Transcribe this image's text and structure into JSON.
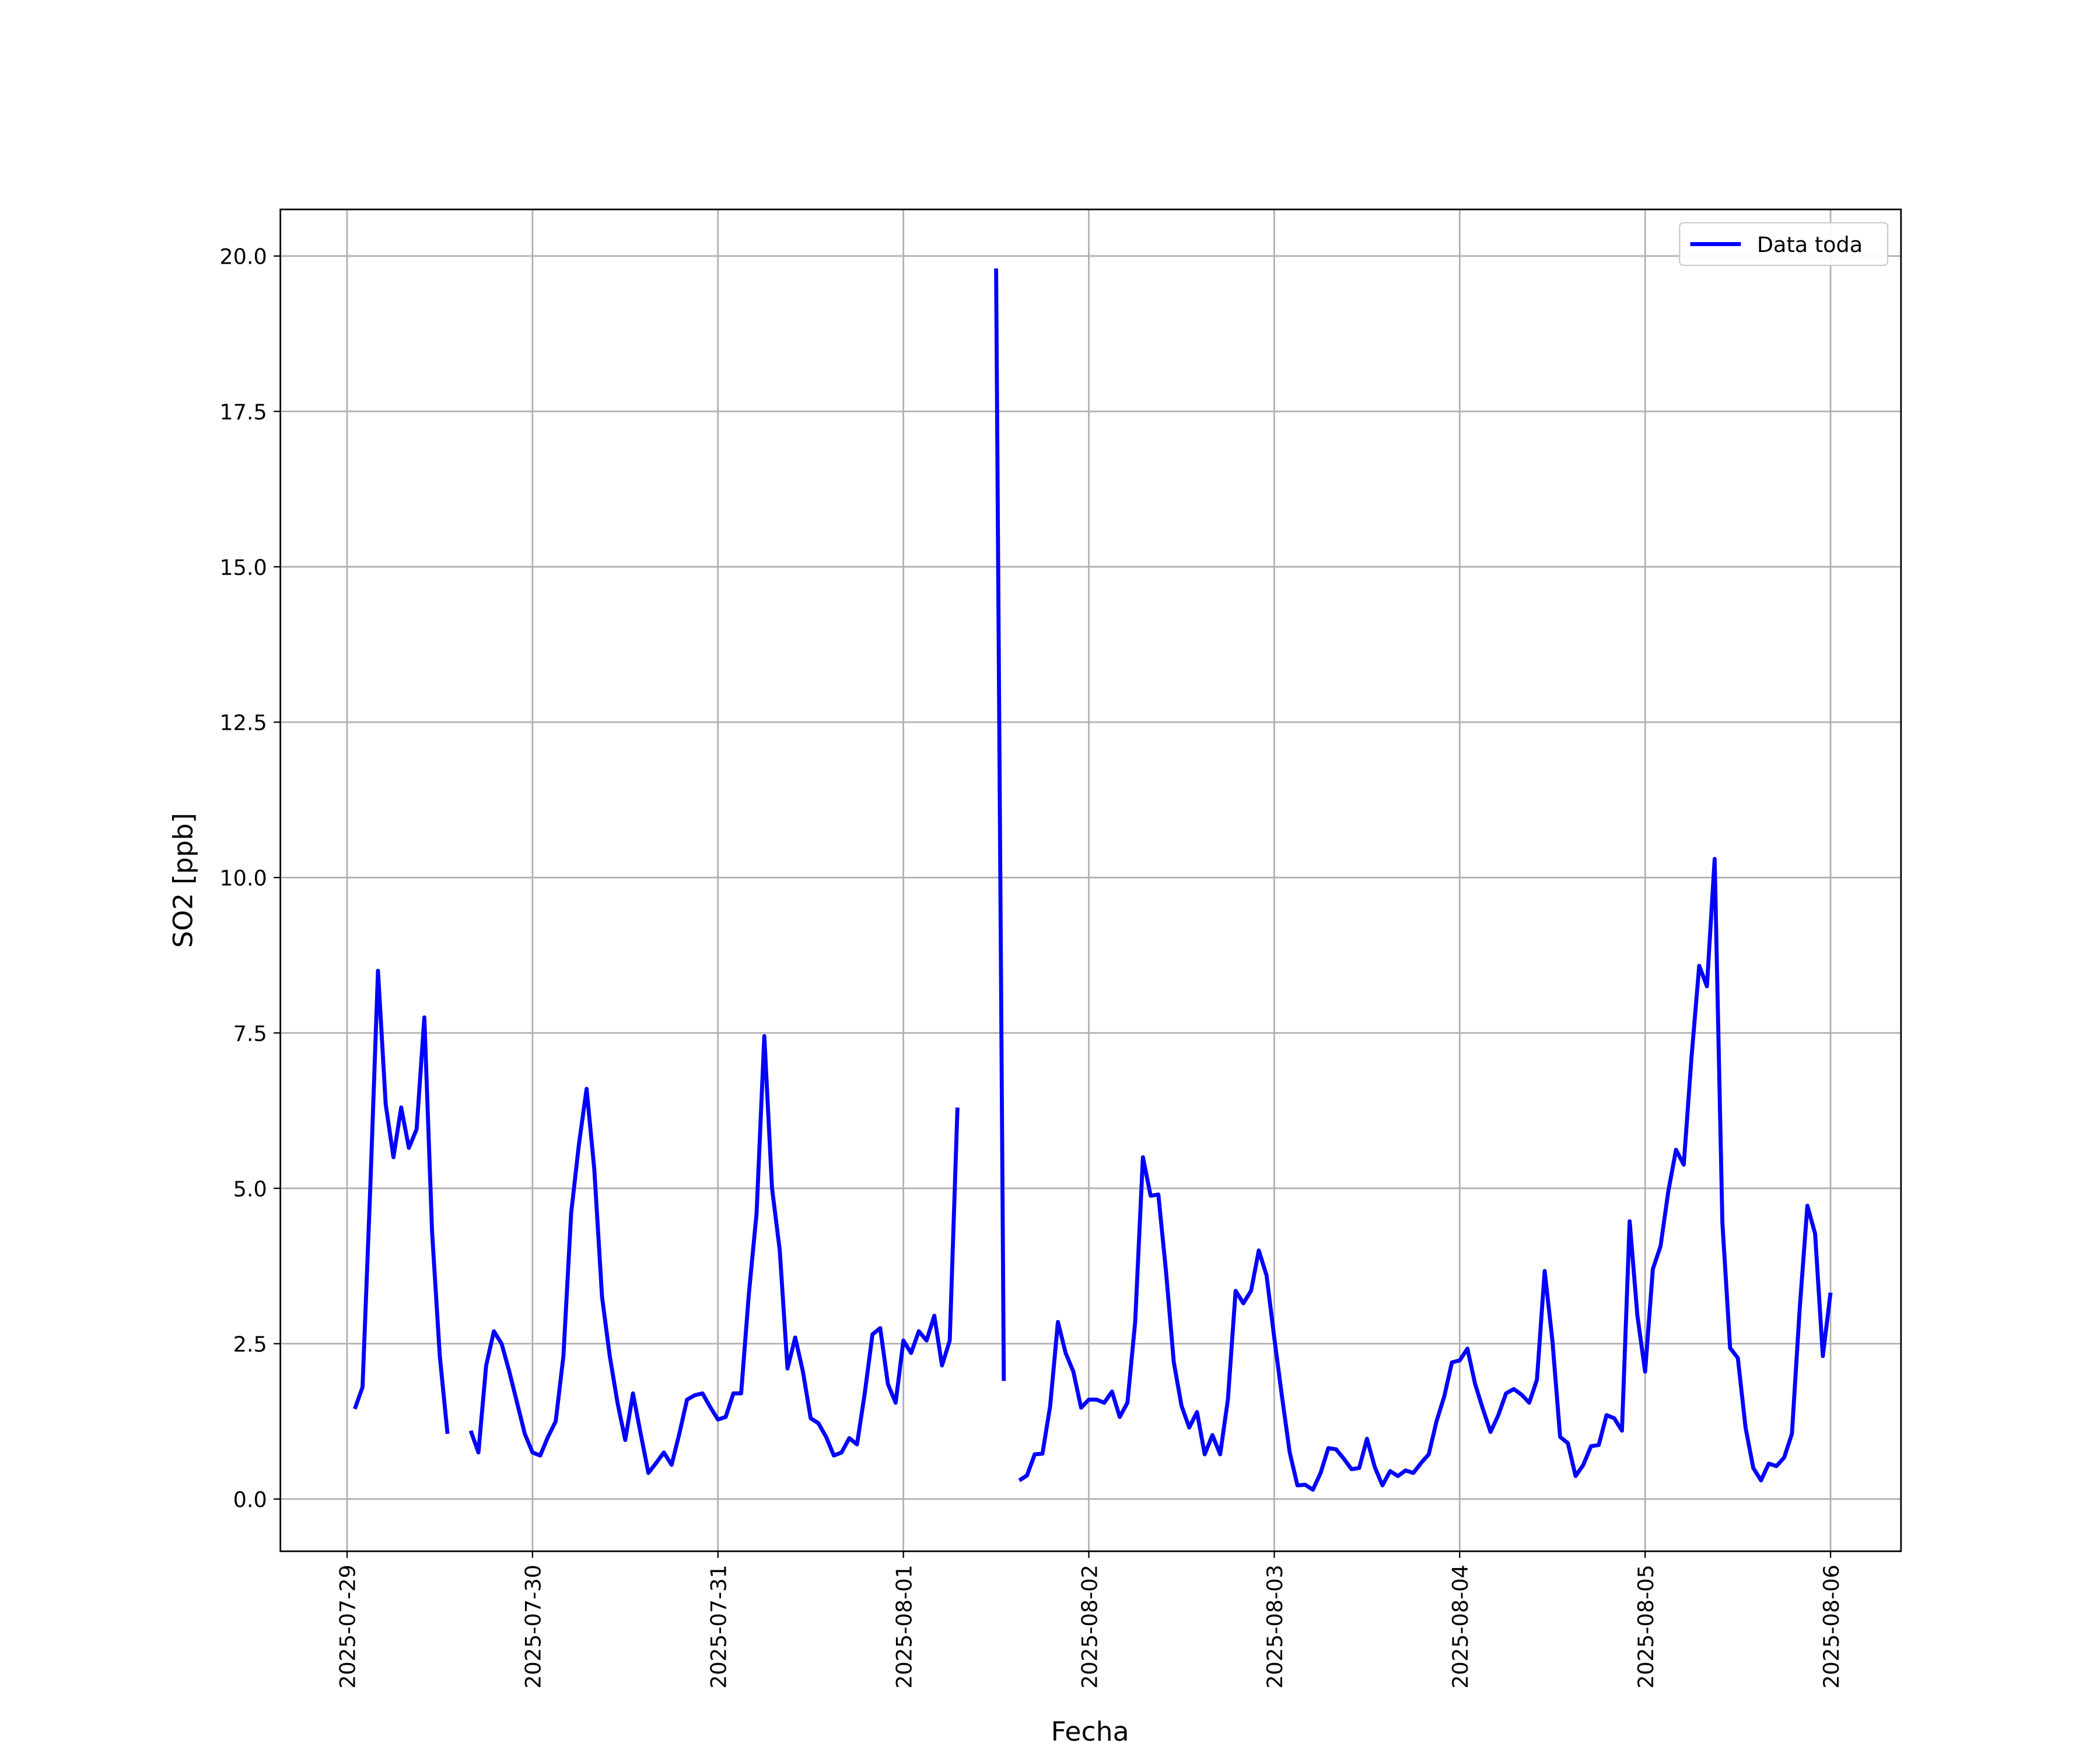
{
  "chart_data": {
    "type": "line",
    "x_label": "Fecha",
    "y_label": "SO2 [ppb]",
    "grid": true,
    "legend": "upper right",
    "xlim": [
      "2025-07-28 15:22",
      "2025-08-06 09:07"
    ],
    "xticks": [
      "2025-07-29",
      "2025-07-30",
      "2025-07-31",
      "2025-08-01",
      "2025-08-02",
      "2025-08-03",
      "2025-08-04",
      "2025-08-05",
      "2025-08-06"
    ],
    "ylim": [
      -0.84,
      20.75
    ],
    "yticks": [
      {
        "value": 0,
        "label": "0.0"
      },
      2.5,
      {
        "value": 5,
        "label": "5.0"
      },
      7.5,
      {
        "value": 10,
        "label": "10.0"
      },
      12.5,
      {
        "value": 15,
        "label": "15.0"
      },
      17.5,
      {
        "value": 20,
        "label": "20.0"
      }
    ],
    "x": [
      "2025-07-29 01:00",
      "2025-07-29 02:00",
      "2025-07-29 03:00",
      "2025-07-29 04:00",
      "2025-07-29 05:00",
      "2025-07-29 06:00",
      "2025-07-29 07:00",
      "2025-07-29 08:00",
      "2025-07-29 09:00",
      "2025-07-29 10:00",
      "2025-07-29 11:00",
      "2025-07-29 12:00",
      "2025-07-29 13:00",
      "2025-07-29 14:00",
      "2025-07-29 15:00",
      "2025-07-29 16:00",
      "2025-07-29 17:00",
      "2025-07-29 18:00",
      "2025-07-29 19:00",
      "2025-07-29 20:00",
      "2025-07-29 21:00",
      "2025-07-29 22:00",
      "2025-07-29 23:00",
      "2025-07-30 00:00",
      "2025-07-30 01:00",
      "2025-07-30 02:00",
      "2025-07-30 03:00",
      "2025-07-30 04:00",
      "2025-07-30 05:00",
      "2025-07-30 06:00",
      "2025-07-30 07:00",
      "2025-07-30 08:00",
      "2025-07-30 09:00",
      "2025-07-30 10:00",
      "2025-07-30 11:00",
      "2025-07-30 12:00",
      "2025-07-30 13:00",
      "2025-07-30 14:00",
      "2025-07-30 15:00",
      "2025-07-30 16:00",
      "2025-07-30 17:00",
      "2025-07-30 18:00",
      "2025-07-30 19:00",
      "2025-07-30 20:00",
      "2025-07-30 21:00",
      "2025-07-30 22:00",
      "2025-07-30 23:00",
      "2025-07-31 00:00",
      "2025-07-31 01:00",
      "2025-07-31 02:00",
      "2025-07-31 03:00",
      "2025-07-31 04:00",
      "2025-07-31 05:00",
      "2025-07-31 06:00",
      "2025-07-31 07:00",
      "2025-07-31 08:00",
      "2025-07-31 09:00",
      "2025-07-31 10:00",
      "2025-07-31 11:00",
      "2025-07-31 12:00",
      "2025-07-31 13:00",
      "2025-07-31 14:00",
      "2025-07-31 15:00",
      "2025-07-31 16:00",
      "2025-07-31 17:00",
      "2025-07-31 18:00",
      "2025-07-31 19:00",
      "2025-07-31 20:00",
      "2025-07-31 21:00",
      "2025-07-31 22:00",
      "2025-07-31 23:00",
      "2025-08-01 00:00",
      "2025-08-01 01:00",
      "2025-08-01 02:00",
      "2025-08-01 03:00",
      "2025-08-01 04:00",
      "2025-08-01 05:00",
      "2025-08-01 06:00",
      "2025-08-01 07:00",
      "2025-08-01 08:00",
      "2025-08-01 09:00",
      "2025-08-01 10:00",
      "2025-08-01 11:00",
      "2025-08-01 12:00",
      "2025-08-01 13:00",
      "2025-08-01 14:00",
      "2025-08-01 15:00",
      "2025-08-01 16:00",
      "2025-08-01 17:00",
      "2025-08-01 18:00",
      "2025-08-01 19:00",
      "2025-08-01 20:00",
      "2025-08-01 21:00",
      "2025-08-01 22:00",
      "2025-08-01 23:00",
      "2025-08-02 00:00",
      "2025-08-02 01:00",
      "2025-08-02 02:00",
      "2025-08-02 03:00",
      "2025-08-02 04:00",
      "2025-08-02 05:00",
      "2025-08-02 06:00",
      "2025-08-02 07:00",
      "2025-08-02 08:00",
      "2025-08-02 09:00",
      "2025-08-02 10:00",
      "2025-08-02 11:00",
      "2025-08-02 12:00",
      "2025-08-02 13:00",
      "2025-08-02 14:00",
      "2025-08-02 15:00",
      "2025-08-02 16:00",
      "2025-08-02 17:00",
      "2025-08-02 18:00",
      "2025-08-02 19:00",
      "2025-08-02 20:00",
      "2025-08-02 21:00",
      "2025-08-02 22:00",
      "2025-08-02 23:00",
      "2025-08-03 00:00",
      "2025-08-03 01:00",
      "2025-08-03 02:00",
      "2025-08-03 03:00",
      "2025-08-03 04:00",
      "2025-08-03 05:00",
      "2025-08-03 06:00",
      "2025-08-03 07:00",
      "2025-08-03 08:00",
      "2025-08-03 09:00",
      "2025-08-03 10:00",
      "2025-08-03 11:00",
      "2025-08-03 12:00",
      "2025-08-03 13:00",
      "2025-08-03 14:00",
      "2025-08-03 15:00",
      "2025-08-03 16:00",
      "2025-08-03 17:00",
      "2025-08-03 18:00",
      "2025-08-03 19:00",
      "2025-08-03 20:00",
      "2025-08-03 21:00",
      "2025-08-03 22:00",
      "2025-08-03 23:00",
      "2025-08-04 00:00",
      "2025-08-04 01:00",
      "2025-08-04 02:00",
      "2025-08-04 03:00",
      "2025-08-04 04:00",
      "2025-08-04 05:00",
      "2025-08-04 06:00",
      "2025-08-04 07:00",
      "2025-08-04 08:00",
      "2025-08-04 09:00",
      "2025-08-04 10:00",
      "2025-08-04 11:00",
      "2025-08-04 12:00",
      "2025-08-04 13:00",
      "2025-08-04 14:00",
      "2025-08-04 15:00",
      "2025-08-04 16:00",
      "2025-08-04 17:00",
      "2025-08-04 18:00",
      "2025-08-04 19:00",
      "2025-08-04 20:00",
      "2025-08-04 21:00",
      "2025-08-04 22:00",
      "2025-08-04 23:00",
      "2025-08-05 00:00",
      "2025-08-05 01:00",
      "2025-08-05 02:00",
      "2025-08-05 03:00",
      "2025-08-05 04:00",
      "2025-08-05 05:00",
      "2025-08-05 06:00",
      "2025-08-05 07:00",
      "2025-08-05 08:00",
      "2025-08-05 09:00",
      "2025-08-05 10:00",
      "2025-08-05 11:00",
      "2025-08-05 12:00",
      "2025-08-05 13:00",
      "2025-08-05 14:00",
      "2025-08-05 15:00",
      "2025-08-05 16:00",
      "2025-08-05 17:00",
      "2025-08-05 18:00",
      "2025-08-05 19:00",
      "2025-08-05 20:00",
      "2025-08-05 21:00",
      "2025-08-05 22:00",
      "2025-08-05 23:00",
      "2025-08-06 00:00"
    ],
    "series": [
      {
        "name": "Data toda",
        "color": "#0000ff",
        "values": [
          1.45,
          1.8,
          5.0,
          8.5,
          6.35,
          5.5,
          6.3,
          5.65,
          5.95,
          7.75,
          4.3,
          2.3,
          1.05,
          null,
          null,
          1.1,
          0.75,
          2.15,
          2.7,
          2.5,
          2.05,
          1.55,
          1.05,
          0.75,
          0.7,
          1.0,
          1.25,
          2.3,
          4.6,
          5.7,
          6.6,
          5.3,
          3.25,
          2.3,
          1.55,
          0.95,
          1.7,
          1.05,
          0.42,
          0.58,
          0.75,
          0.55,
          1.05,
          1.6,
          1.67,
          1.7,
          1.48,
          1.28,
          1.32,
          1.7,
          1.7,
          3.3,
          4.6,
          7.45,
          5.0,
          4.0,
          2.1,
          2.6,
          2.05,
          1.3,
          1.22,
          1.0,
          0.7,
          0.75,
          0.98,
          0.88,
          1.7,
          2.65,
          2.75,
          1.85,
          1.55,
          2.55,
          2.35,
          2.7,
          2.55,
          2.95,
          2.15,
          2.55,
          6.3,
          null,
          null,
          null,
          null,
          19.8,
          1.9,
          null,
          0.3,
          0.38,
          0.72,
          0.73,
          1.5,
          2.85,
          2.35,
          2.05,
          1.47,
          1.6,
          1.6,
          1.55,
          1.73,
          1.32,
          1.55,
          2.85,
          5.5,
          4.88,
          4.9,
          3.65,
          2.2,
          1.5,
          1.15,
          1.4,
          0.72,
          1.03,
          0.72,
          1.6,
          3.35,
          3.15,
          3.35,
          4.0,
          3.6,
          2.6,
          1.65,
          0.75,
          0.22,
          0.23,
          0.15,
          0.42,
          0.82,
          0.8,
          0.65,
          0.48,
          0.5,
          0.97,
          0.52,
          0.22,
          0.45,
          0.37,
          0.46,
          0.42,
          0.58,
          0.72,
          1.25,
          1.65,
          2.2,
          2.23,
          2.42,
          1.85,
          1.45,
          1.08,
          1.35,
          1.7,
          1.77,
          1.68,
          1.55,
          1.92,
          3.67,
          2.55,
          1.0,
          0.9,
          0.37,
          0.55,
          0.85,
          0.87,
          1.35,
          1.3,
          1.1,
          4.47,
          2.95,
          2.05,
          3.7,
          4.07,
          4.95,
          5.62,
          5.38,
          7.1,
          8.58,
          8.25,
          10.3,
          4.45,
          2.43,
          2.27,
          1.15,
          0.5,
          0.3,
          0.57,
          0.53,
          0.67,
          1.05,
          3.05,
          4.72,
          4.27,
          2.3,
          3.32
        ]
      }
    ]
  }
}
